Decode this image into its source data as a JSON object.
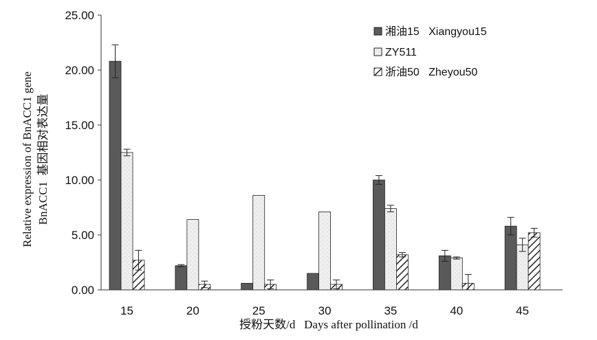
{
  "chart_data": {
    "type": "bar",
    "categories": [
      "15",
      "20",
      "25",
      "30",
      "35",
      "40",
      "45"
    ],
    "series": [
      {
        "name": "湘油15   Xiangyou15",
        "values": [
          20.8,
          2.2,
          0.6,
          1.5,
          10.0,
          3.1,
          5.8
        ],
        "errors": [
          1.5,
          0.1,
          0.0,
          0.0,
          0.4,
          0.5,
          0.8
        ],
        "pattern": "dark"
      },
      {
        "name": "ZY511",
        "values": [
          12.5,
          6.4,
          8.6,
          7.1,
          7.4,
          2.9,
          4.1
        ],
        "errors": [
          0.3,
          0.0,
          0.0,
          0.0,
          0.3,
          0.1,
          0.6
        ],
        "pattern": "light"
      },
      {
        "name": "浙油50   Zheyou50",
        "values": [
          2.7,
          0.5,
          0.5,
          0.5,
          3.2,
          0.6,
          5.2
        ],
        "errors": [
          0.9,
          0.3,
          0.4,
          0.4,
          0.2,
          0.8,
          0.4
        ],
        "pattern": "hatch"
      }
    ],
    "ylim": [
      0,
      25
    ],
    "yticks": [
      "0.00",
      "5.00",
      "10.00",
      "15.00",
      "20.00",
      "25.00"
    ],
    "ytick_values": [
      0,
      5,
      10,
      15,
      20,
      25
    ],
    "xlabel": "授粉天数/d   Days after pollination /d",
    "ylabel_line1": "Relative expression of BnACC1 gene",
    "ylabel_line2": "BnACC1  基因相对表达量",
    "legend_position": "top-right",
    "colors": {
      "dark": "#5a5a5a",
      "light": "#eeeeee",
      "hatch_stroke": "#222222",
      "bar_edge": "#222222"
    }
  }
}
